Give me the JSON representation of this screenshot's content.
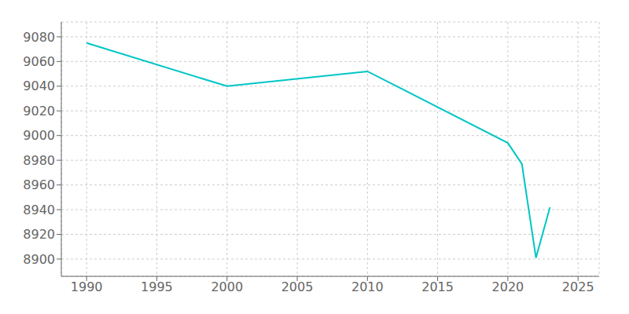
{
  "chart_data": {
    "type": "line",
    "x": [
      1990,
      2000,
      2010,
      2020,
      2021,
      2022,
      2023
    ],
    "values": [
      9075,
      9040,
      9052,
      8994,
      8977,
      8901,
      8942
    ],
    "color": "#00C5C5",
    "xlim": [
      1988.2,
      2026.5
    ],
    "ylim": [
      8886,
      9092
    ],
    "xticks": [
      1990,
      1995,
      2000,
      2005,
      2010,
      2015,
      2020,
      2025
    ],
    "yticks": [
      8900,
      8920,
      8940,
      8960,
      8980,
      9000,
      9020,
      9040,
      9060,
      9080
    ],
    "grid": true
  }
}
